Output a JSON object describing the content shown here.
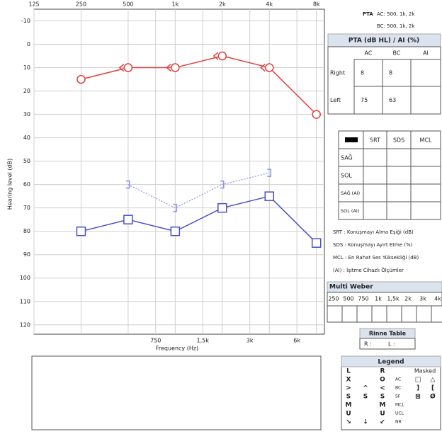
{
  "chart_data": {
    "type": "line",
    "y_label": "Hearing level (dB)",
    "x_label": "Frequency (Hz)",
    "log_x": true,
    "y_inverted": true,
    "grid": true,
    "xlim": [
      125,
      9000
    ],
    "ylim": [
      -15,
      124
    ],
    "xticks": [
      125,
      250,
      500,
      {
        "value": 1000,
        "label": "1k"
      },
      {
        "value": 2000,
        "label": "2k"
      },
      {
        "value": 4000,
        "label": "4k"
      },
      {
        "value": 8000,
        "label": "8k"
      }
    ],
    "xticks_bottom": [
      750,
      {
        "value": 1500,
        "label": "1,5k"
      },
      {
        "value": 3000,
        "label": "3k"
      },
      {
        "value": 6000,
        "label": "6k"
      }
    ],
    "yticks": [
      -10,
      0,
      10,
      20,
      30,
      40,
      50,
      60,
      70,
      80,
      90,
      100,
      110,
      120
    ],
    "series": [
      {
        "color": "#e0403c",
        "marker": "circle",
        "line": "solid",
        "x": [
          250,
          500,
          1000,
          2000,
          4000,
          8000
        ],
        "values": [
          15,
          10,
          10,
          5,
          10,
          30
        ]
      },
      {
        "color": "#e0403c",
        "marker": "less-than",
        "line": "none",
        "x": [
          500,
          1000,
          2000,
          4000
        ],
        "values": [
          10,
          10,
          5,
          10
        ]
      },
      {
        "color": "#4a4fc8",
        "marker": "square",
        "line": "solid",
        "x": [
          250,
          500,
          1000,
          2000,
          4000,
          8000
        ],
        "values": [
          80,
          75,
          80,
          70,
          65,
          85
        ]
      },
      {
        "color": "#8f93e6",
        "marker": "bracket",
        "line": "dotted",
        "x": [
          500,
          1000,
          2000,
          4000
        ],
        "values": [
          60,
          70,
          60,
          55
        ]
      }
    ]
  },
  "pta_note": {
    "label": "PTA",
    "ac": "AC: 500, 1k, 2k",
    "bc": "BC: 500, 1k, 2k"
  },
  "pta_table": {
    "title": "PTA (dB HL) / AI (%)",
    "columns": [
      "AC",
      "BC",
      "AI"
    ],
    "rows": [
      {
        "label": "Right",
        "values": [
          8,
          8,
          null
        ]
      },
      {
        "label": "Left",
        "values": [
          75,
          63,
          null
        ]
      }
    ]
  },
  "speech_table": {
    "columns": [
      "SRT",
      "SDS",
      "MCL"
    ],
    "rows": [
      {
        "label": "SAĞ",
        "color": "#c0392b"
      },
      {
        "label": "SOL",
        "color": "#3a3fb8"
      },
      {
        "label": "SAĞ (AI)",
        "color": "#c0392b"
      },
      {
        "label": "SOL (AI)",
        "color": "#3a3fb8"
      }
    ]
  },
  "abbreviations": [
    "SRT   : Konuşmayı Alma Eşiği (dB)",
    "SDS   : Konuşmayı Ayırt Etme (%)",
    "MCL  : En Rahat Ses Yüksekliği (dB)",
    "(AI)   : İşitme Cihazlı Ölçümler"
  ],
  "multi_weber": {
    "title": "Multi Weber",
    "frequencies": [
      "250",
      "500",
      "750",
      "1k",
      "1,5k",
      "2k",
      "3k",
      "4k"
    ]
  },
  "rinne": {
    "title": "Rinne Table",
    "cells": [
      "R :",
      "L :"
    ]
  },
  "legend": {
    "title": "Legend",
    "masked": "Masked",
    "rows": [
      {
        "left": "L",
        "right": "R"
      },
      {
        "left": "X",
        "right": "O",
        "type": "AC",
        "masked_left": "□",
        "masked_right": "△"
      },
      {
        "left": ">",
        "both": "^",
        "right": "<",
        "type": "BC",
        "masked_left": "]",
        "masked_right": "["
      },
      {
        "left": "S",
        "both": "S",
        "right": "S",
        "type": "SF",
        "masked_left": "⊠",
        "masked_right": "Ø"
      },
      {
        "left": "M",
        "right": "M",
        "type": "MCL"
      },
      {
        "left": "U",
        "right": "U",
        "type": "UCL"
      },
      {
        "left": "↘",
        "both": "↓",
        "right": "↙",
        "type": "NR"
      }
    ]
  }
}
